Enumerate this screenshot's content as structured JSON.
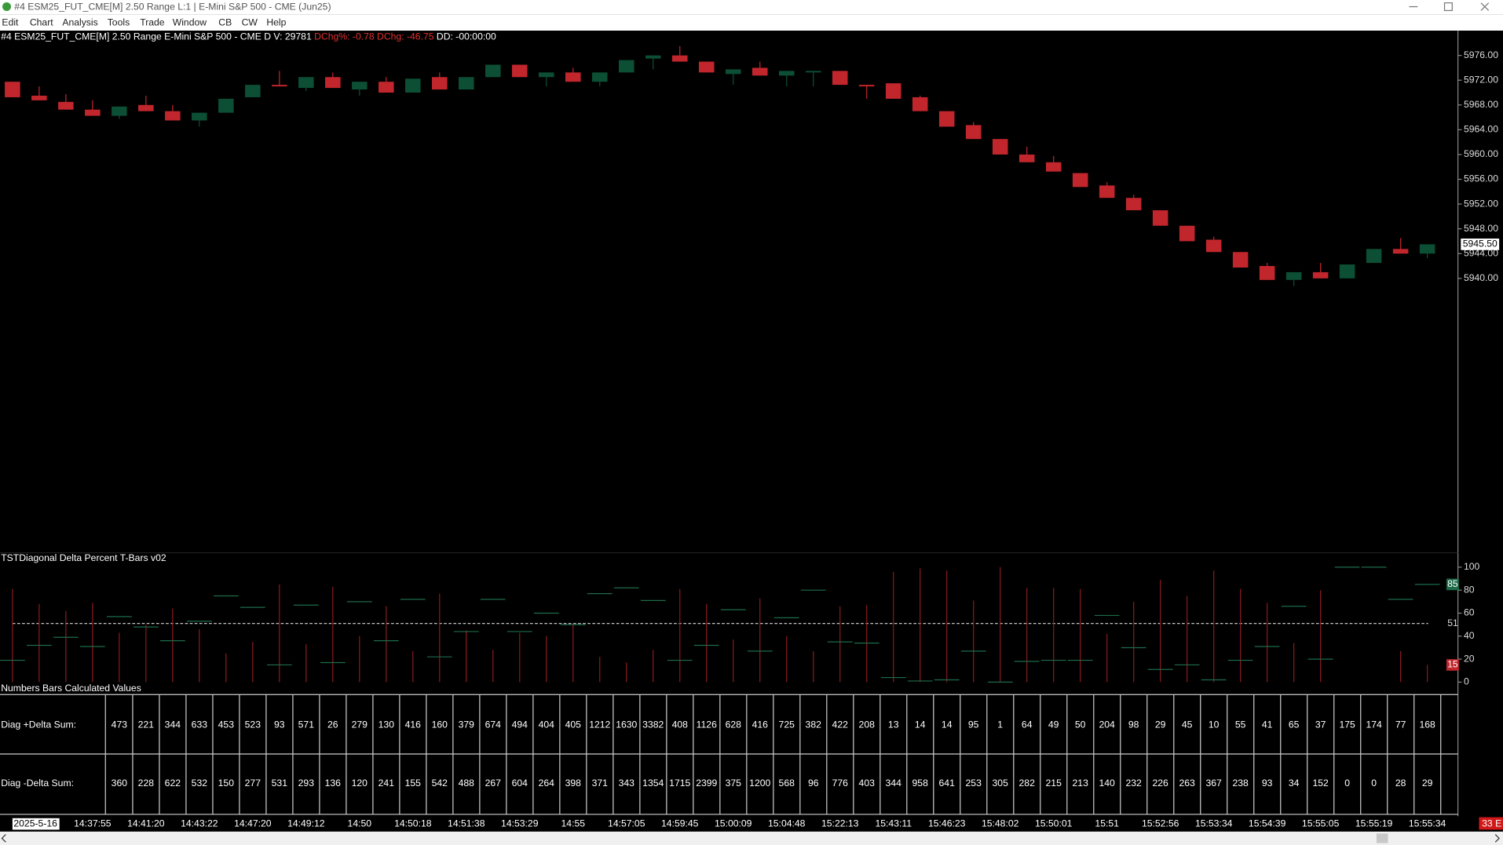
{
  "window": {
    "title": "#4 ESM25_FUT_CME[M]  2.50 Range L:1 | E-Mini S&P 500 - CME (Jun25)",
    "menu": [
      "Edit",
      "Chart",
      "Analysis",
      "Tools",
      "Trade",
      "Window",
      "CB",
      "CW",
      "Help"
    ]
  },
  "header": {
    "symbol": "#4 ESM25_FUT_CME[M]  2.50 Range E-Mini S&P 500 - CME D V: 29781",
    "change": "DChg%: -0.78 DChg: -46.75",
    "dd": "DD: -00:00:00"
  },
  "status": "33 E",
  "chart_data": [
    {
      "type": "candlestick",
      "up_color": "#0c4f35",
      "down_color": "#c1262d",
      "categories": [
        null,
        "2025-5-16",
        null,
        "14:37:55",
        null,
        "14:41:20",
        null,
        "14:43:22",
        null,
        "14:47:20",
        null,
        "14:49:12",
        null,
        "14:50",
        null,
        "14:50:18",
        null,
        "14:51:38",
        null,
        "14:53:29",
        null,
        "14:55",
        null,
        "14:57:05",
        null,
        "14:59:45",
        null,
        "15:00:09",
        null,
        "15:04:48",
        null,
        "15:22:13",
        null,
        "15:43:11",
        null,
        "15:46:23",
        null,
        "15:48:02",
        null,
        "15:50:01",
        null,
        "15:51",
        null,
        "15:52:56",
        null,
        "15:53:34",
        null,
        "15:54:39",
        null,
        "15:55:05",
        null,
        "15:55:19",
        null,
        "15:55:34"
      ],
      "open": [
        5971.75,
        5969.5,
        5968.5,
        5967.25,
        5966.25,
        5968,
        5967,
        5965.5,
        5966.75,
        5969.25,
        5971.25,
        5970.75,
        5972.5,
        5970.5,
        5971.75,
        5970,
        5972.5,
        5970.5,
        5972.5,
        5974.5,
        5972.5,
        5973.25,
        5971.75,
        5973.25,
        5975.5,
        5976,
        5975,
        5973,
        5974,
        5972.75,
        5973.25,
        5973.5,
        5971.25,
        5971.5,
        5969.25,
        5967,
        5964.75,
        5962.5,
        5960,
        5958.75,
        5957,
        5955,
        5953,
        5951,
        5948.5,
        5946.25,
        5944.25,
        5942,
        5939.75,
        5941,
        5940,
        5942.5,
        5944.75,
        5944
      ],
      "high": [
        5971.75,
        5971,
        5969.75,
        5968.75,
        5967.75,
        5969.5,
        5968,
        5966.75,
        5969,
        5971.25,
        5973.5,
        5972.5,
        5973.25,
        5971.75,
        5972.5,
        5972.25,
        5973.25,
        5972.5,
        5974.5,
        5974.5,
        5973.25,
        5974,
        5973.25,
        5975.25,
        5976,
        5977.5,
        5975,
        5973.75,
        5975,
        5973.5,
        5973.5,
        5973.5,
        5971.25,
        5971.5,
        5969.5,
        5967,
        5965.25,
        5962.5,
        5961.25,
        5959.75,
        5957,
        5955.5,
        5953.5,
        5951,
        5948.5,
        5946.75,
        5944.25,
        5942.5,
        5941,
        5942.5,
        5942.25,
        5944.75,
        5946.5,
        5945.5
      ],
      "low": [
        5969.25,
        5968.75,
        5967.25,
        5966.25,
        5965.75,
        5967,
        5965.5,
        5964.5,
        5966.75,
        5969.25,
        5971,
        5970.25,
        5970.75,
        5969.5,
        5970,
        5970,
        5970.5,
        5970.5,
        5972.5,
        5972.5,
        5971,
        5971.75,
        5971,
        5973.25,
        5973.75,
        5975,
        5973.25,
        5971.25,
        5972.75,
        5971,
        5971,
        5971.25,
        5969,
        5969,
        5967,
        5964.5,
        5962.5,
        5960,
        5958.75,
        5957.25,
        5954.75,
        5953,
        5951,
        5948.5,
        5946,
        5944.25,
        5941.75,
        5939.75,
        5938.75,
        5940,
        5940,
        5942.5,
        5944,
        5943.25
      ],
      "close": [
        5969.25,
        5968.75,
        5967.25,
        5966.25,
        5967.75,
        5967,
        5965.5,
        5966.75,
        5969,
        5971.25,
        5971,
        5972.5,
        5970.75,
        5971.75,
        5970,
        5972.25,
        5970.5,
        5972.5,
        5974.5,
        5972.5,
        5973.25,
        5971.75,
        5973.25,
        5975.25,
        5976,
        5975,
        5973.25,
        5973.75,
        5972.75,
        5973.5,
        5973.5,
        5971.25,
        5971,
        5969,
        5967,
        5964.5,
        5962.5,
        5960,
        5958.75,
        5957.25,
        5954.75,
        5953,
        5951,
        5948.5,
        5946,
        5944.25,
        5941.75,
        5939.75,
        5941,
        5940,
        5942.25,
        5944.75,
        5944,
        5945.5
      ],
      "ylim": [
        5896,
        5980
      ],
      "yticks": [
        {
          "value": 5976,
          "label": "5976.00"
        },
        {
          "value": 5972,
          "label": "5972.00"
        },
        {
          "value": 5968,
          "label": "5968.00"
        },
        {
          "value": 5964,
          "label": "5964.00"
        },
        {
          "value": 5960,
          "label": "5960.00"
        },
        {
          "value": 5956,
          "label": "5956.00"
        },
        {
          "value": 5952,
          "label": "5952.00"
        },
        {
          "value": 5948,
          "label": "5948.00"
        },
        {
          "value": 5944,
          "label": "5944.00"
        },
        {
          "value": 5940,
          "label": "5940.00"
        }
      ],
      "last_price": {
        "value": 5945.5,
        "label": "5945.50"
      }
    },
    {
      "type": "tbar",
      "title": "TSTDiagonal Delta Percent T-Bars v02",
      "series": [
        {
          "color": "#8a1c1c",
          "values": [
            81,
            68,
            62,
            69,
            43,
            50,
            64,
            46,
            25,
            35,
            85,
            33,
            83,
            40,
            66,
            27,
            77,
            45,
            28,
            43,
            40,
            51,
            22,
            17,
            28,
            81,
            68,
            37,
            73,
            40,
            27,
            66,
            67,
            96,
            99,
            97,
            71,
            100,
            82,
            82,
            81,
            42,
            70,
            89,
            75,
            97,
            81,
            69,
            34,
            80,
            0,
            0,
            27,
            15
          ]
        },
        {
          "color": "#1e6b4a",
          "values": [
            19,
            32,
            39,
            31,
            57,
            48,
            36,
            53,
            75,
            65,
            15,
            67,
            17,
            70,
            36,
            72,
            22,
            44,
            72,
            44,
            60,
            50,
            77,
            82,
            71,
            19,
            32,
            63,
            27,
            56,
            80,
            35,
            34,
            4,
            1,
            2,
            27,
            0,
            18,
            19,
            19,
            58,
            30,
            11,
            15,
            2,
            19,
            31,
            66,
            20,
            100,
            100,
            72,
            85
          ]
        }
      ],
      "reference_line": 51,
      "ylim": [
        0,
        100
      ],
      "yticks": [
        100,
        80,
        60,
        40,
        20,
        0
      ]
    }
  ],
  "table": {
    "title": "Numbers Bars Calculated Values",
    "rows": [
      {
        "label": "Diag +Delta Sum:",
        "values": [
          "473",
          "221",
          "344",
          "633",
          "453",
          "523",
          "93",
          "571",
          "26",
          "279",
          "130",
          "416",
          "160",
          "379",
          "674",
          "494",
          "404",
          "405",
          "1212",
          "1630",
          "3382",
          "408",
          "1126",
          "628",
          "416",
          "725",
          "382",
          "422",
          "208",
          "13",
          "14",
          "14",
          "95",
          "1",
          "64",
          "49",
          "50",
          "204",
          "98",
          "29",
          "45",
          "10",
          "55",
          "41",
          "65",
          "37",
          "175",
          "174",
          "77",
          "168"
        ]
      },
      {
        "label": "Diag -Delta Sum:",
        "values": [
          "360",
          "228",
          "622",
          "532",
          "150",
          "277",
          "531",
          "293",
          "136",
          "120",
          "241",
          "155",
          "542",
          "488",
          "267",
          "604",
          "264",
          "398",
          "371",
          "343",
          "1354",
          "1715",
          "2399",
          "375",
          "1200",
          "568",
          "96",
          "776",
          "403",
          "344",
          "958",
          "641",
          "253",
          "305",
          "282",
          "215",
          "213",
          "140",
          "232",
          "226",
          "263",
          "367",
          "238",
          "93",
          "34",
          "152",
          "0",
          "0",
          "28",
          "29"
        ]
      }
    ]
  }
}
